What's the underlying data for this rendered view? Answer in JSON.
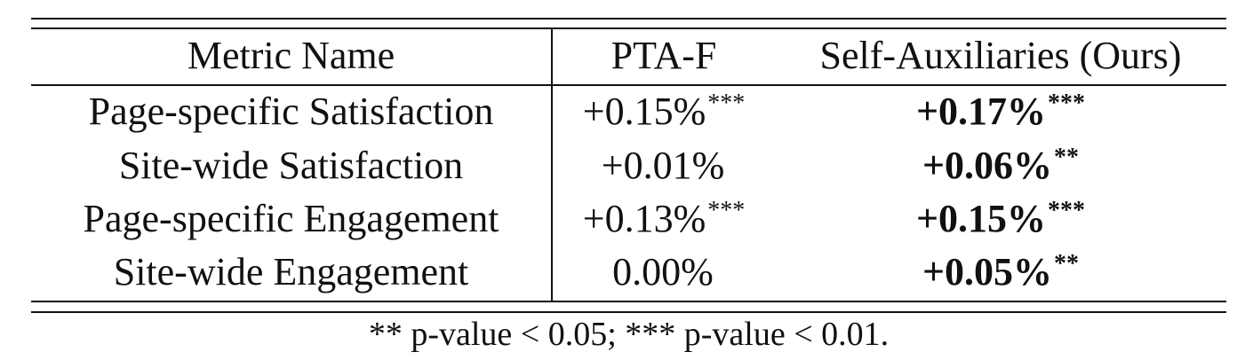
{
  "table": {
    "headers": [
      "Metric Name",
      "PTA-F",
      "Self-Auxiliaries (Ours)"
    ],
    "rows": [
      {
        "metric": "Page-specific Satisfaction",
        "ptaf": {
          "value": "+0.15%",
          "stars": "***"
        },
        "ours": {
          "value": "+0.17%",
          "stars": "***"
        }
      },
      {
        "metric": "Site-wide Satisfaction",
        "ptaf": {
          "value": "+0.01%",
          "stars": ""
        },
        "ours": {
          "value": "+0.06%",
          "stars": "**"
        }
      },
      {
        "metric": "Page-specific Engagement",
        "ptaf": {
          "value": "+0.13%",
          "stars": "***"
        },
        "ours": {
          "value": "+0.15%",
          "stars": "***"
        }
      },
      {
        "metric": "Site-wide Engagement",
        "ptaf": {
          "value": "0.00%",
          "stars": ""
        },
        "ours": {
          "value": "+0.05%",
          "stars": "**"
        }
      }
    ],
    "footnote": "** p-value < 0.05; *** p-value < 0.01."
  }
}
